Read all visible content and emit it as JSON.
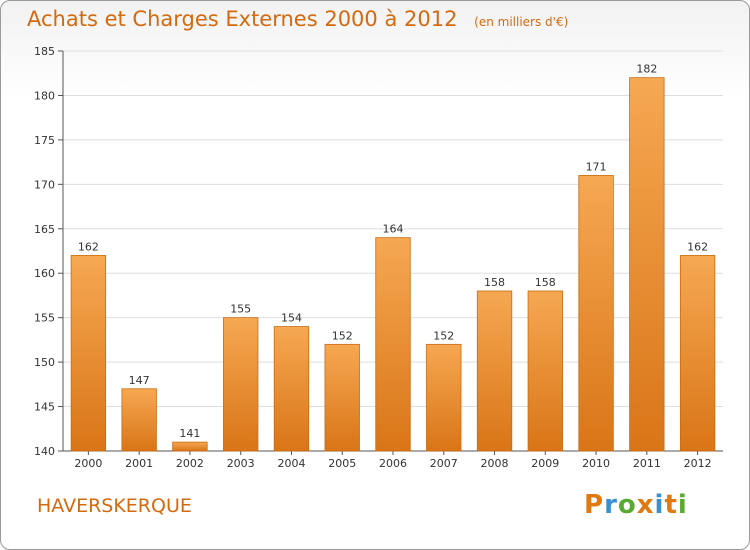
{
  "title": "Achats et Charges Externes 2000 à 2012",
  "subtitle": "(en milliers d'€)",
  "place_name": "HAVERSKERQUE",
  "logo_text": "Proxiti",
  "colors": {
    "accent": "#d46a10",
    "bar_top": "#f6a852",
    "bar_bottom": "#d97517",
    "logo": [
      "#e07a10",
      "#3a8fd0",
      "#5aaa32",
      "#e07a10",
      "#3a8fd0",
      "#e07a10",
      "#5aaa32"
    ]
  },
  "chart_data": {
    "type": "bar",
    "categories": [
      "2000",
      "2001",
      "2002",
      "2003",
      "2004",
      "2005",
      "2006",
      "2007",
      "2008",
      "2009",
      "2010",
      "2011",
      "2012"
    ],
    "values": [
      162,
      147,
      141,
      155,
      154,
      152,
      164,
      152,
      158,
      158,
      171,
      182,
      162
    ],
    "ylim": [
      140,
      185
    ],
    "yticks": [
      140,
      145,
      150,
      155,
      160,
      165,
      170,
      175,
      180,
      185
    ],
    "grid": true,
    "data_labels": true
  }
}
